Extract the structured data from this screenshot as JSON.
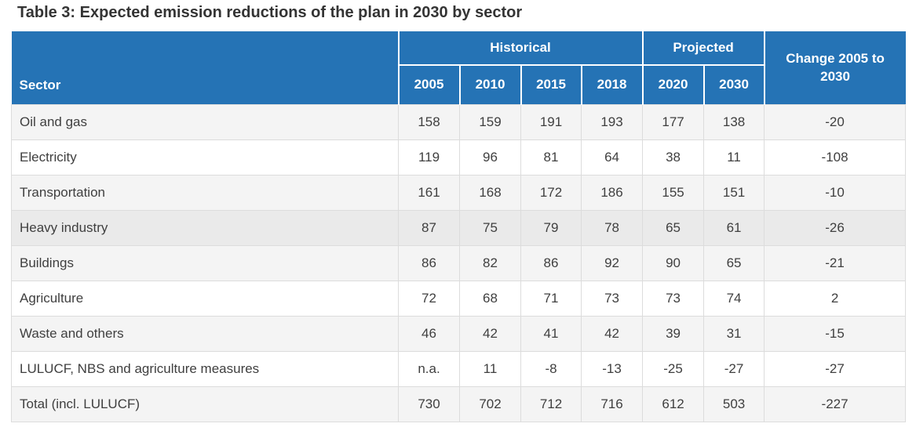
{
  "page": {
    "title": "Table 3: Expected emission reductions of the plan in 2030 by sector"
  },
  "colors": {
    "header_bg": "#2573b5",
    "header_text": "#ffffff",
    "body_text": "#3f3f3f",
    "title_text": "#343434",
    "row_alt_bg": "#f4f4f4",
    "row_highlight_bg": "#eaeaea",
    "border": "#dcdcdc"
  },
  "table": {
    "header": {
      "sector_label": "Sector",
      "groups": [
        {
          "label": "Historical",
          "span": 4
        },
        {
          "label": "Projected",
          "span": 2
        }
      ],
      "years": [
        "2005",
        "2010",
        "2015",
        "2018",
        "2020",
        "2030"
      ],
      "change_label": "Change 2005 to 2030"
    },
    "rows": [
      {
        "sector": "Oil and gas",
        "values": [
          "158",
          "159",
          "191",
          "193",
          "177",
          "138",
          "-20"
        ],
        "highlighted": false
      },
      {
        "sector": "Electricity",
        "values": [
          "119",
          "96",
          "81",
          "64",
          "38",
          "11",
          "-108"
        ],
        "highlighted": false
      },
      {
        "sector": "Transportation",
        "values": [
          "161",
          "168",
          "172",
          "186",
          "155",
          "151",
          "-10"
        ],
        "highlighted": false
      },
      {
        "sector": "Heavy industry",
        "values": [
          "87",
          "75",
          "79",
          "78",
          "65",
          "61",
          "-26"
        ],
        "highlighted": true
      },
      {
        "sector": "Buildings",
        "values": [
          "86",
          "82",
          "86",
          "92",
          "90",
          "65",
          "-21"
        ],
        "highlighted": false
      },
      {
        "sector": "Agriculture",
        "values": [
          "72",
          "68",
          "71",
          "73",
          "73",
          "74",
          "2"
        ],
        "highlighted": false
      },
      {
        "sector": "Waste and others",
        "values": [
          "46",
          "42",
          "41",
          "42",
          "39",
          "31",
          "-15"
        ],
        "highlighted": false
      },
      {
        "sector": "LULUCF, NBS and agriculture measures",
        "values": [
          "n.a.",
          "11",
          "-8",
          "-13",
          "-25",
          "-27",
          "-27"
        ],
        "highlighted": false
      },
      {
        "sector": "Total (incl. LULUCF)",
        "values": [
          "730",
          "702",
          "712",
          "716",
          "612",
          "503",
          "-227"
        ],
        "highlighted": false
      }
    ]
  },
  "chart_data": {
    "type": "table",
    "title": "Table 3: Expected emission reductions of the plan in 2030 by sector",
    "columns": [
      "Sector",
      "2005",
      "2010",
      "2015",
      "2018",
      "2020",
      "2030",
      "Change 2005 to 2030"
    ],
    "column_groups": [
      {
        "label": "Historical",
        "columns": [
          "2005",
          "2010",
          "2015",
          "2018"
        ]
      },
      {
        "label": "Projected",
        "columns": [
          "2020",
          "2030"
        ]
      }
    ],
    "rows": [
      [
        "Oil and gas",
        158,
        159,
        191,
        193,
        177,
        138,
        -20
      ],
      [
        "Electricity",
        119,
        96,
        81,
        64,
        38,
        11,
        -108
      ],
      [
        "Transportation",
        161,
        168,
        172,
        186,
        155,
        151,
        -10
      ],
      [
        "Heavy industry",
        87,
        75,
        79,
        78,
        65,
        61,
        -26
      ],
      [
        "Buildings",
        86,
        82,
        86,
        92,
        90,
        65,
        -21
      ],
      [
        "Agriculture",
        72,
        68,
        71,
        73,
        73,
        74,
        2
      ],
      [
        "Waste and others",
        46,
        42,
        41,
        42,
        39,
        31,
        -15
      ],
      [
        "LULUCF, NBS and agriculture measures",
        "n.a.",
        11,
        -8,
        -13,
        -25,
        -27,
        -27
      ],
      [
        "Total (incl. LULUCF)",
        730,
        702,
        712,
        716,
        612,
        503,
        -227
      ]
    ]
  }
}
